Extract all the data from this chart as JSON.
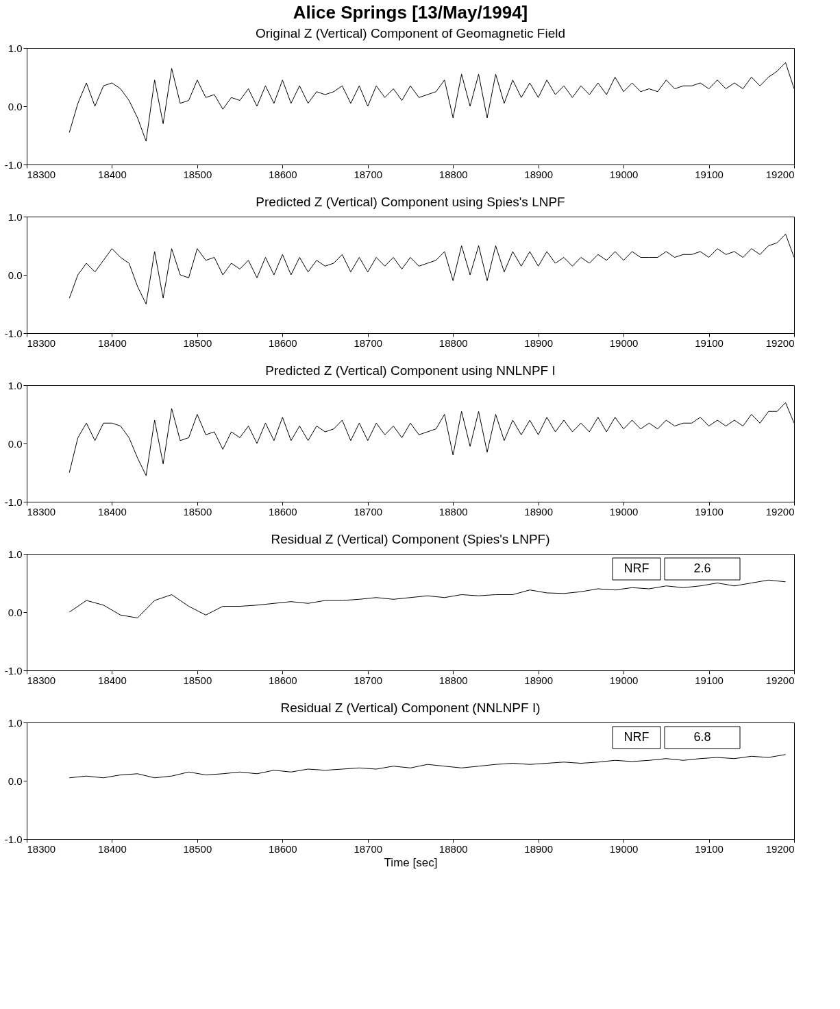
{
  "chart_data": [
    {
      "type": "line",
      "title": "Alice Springs [13/May/1994]",
      "subtitle": "Original Z (Vertical) Component of Geomagnetic Field",
      "x": [
        18350,
        18360,
        18370,
        18380,
        18390,
        18400,
        18410,
        18420,
        18430,
        18440,
        18450,
        18460,
        18470,
        18480,
        18490,
        18500,
        18510,
        18520,
        18530,
        18540,
        18550,
        18560,
        18570,
        18580,
        18590,
        18600,
        18610,
        18620,
        18630,
        18640,
        18650,
        18660,
        18670,
        18680,
        18690,
        18700,
        18710,
        18720,
        18730,
        18740,
        18750,
        18760,
        18770,
        18780,
        18790,
        18800,
        18810,
        18820,
        18830,
        18840,
        18850,
        18860,
        18870,
        18880,
        18890,
        18900,
        18910,
        18920,
        18930,
        18940,
        18950,
        18960,
        18970,
        18980,
        18990,
        19000,
        19010,
        19020,
        19030,
        19040,
        19050,
        19060,
        19070,
        19080,
        19090,
        19100,
        19110,
        19120,
        19130,
        19140,
        19150,
        19160,
        19170,
        19180,
        19190,
        19200
      ],
      "series": [
        {
          "color": "#000000",
          "values": [
            -0.45,
            0.05,
            0.4,
            0.0,
            0.35,
            0.4,
            0.3,
            0.1,
            -0.2,
            -0.6,
            0.45,
            -0.3,
            0.65,
            0.05,
            0.1,
            0.45,
            0.15,
            0.2,
            -0.05,
            0.15,
            0.1,
            0.3,
            0.0,
            0.35,
            0.05,
            0.45,
            0.05,
            0.35,
            0.05,
            0.25,
            0.2,
            0.25,
            0.35,
            0.05,
            0.35,
            0.0,
            0.35,
            0.15,
            0.3,
            0.1,
            0.35,
            0.15,
            0.2,
            0.25,
            0.45,
            -0.2,
            0.55,
            0.0,
            0.55,
            -0.2,
            0.55,
            0.05,
            0.45,
            0.15,
            0.4,
            0.15,
            0.45,
            0.2,
            0.35,
            0.15,
            0.35,
            0.2,
            0.4,
            0.2,
            0.5,
            0.25,
            0.4,
            0.25,
            0.3,
            0.25,
            0.45,
            0.3,
            0.35,
            0.35,
            0.4,
            0.3,
            0.45,
            0.3,
            0.4,
            0.3,
            0.5,
            0.35,
            0.5,
            0.6,
            0.75,
            0.3
          ]
        }
      ],
      "xlim": [
        18300,
        19200
      ],
      "xticks": [
        18300,
        18400,
        18500,
        18600,
        18700,
        18800,
        18900,
        19000,
        19100,
        19200
      ],
      "ylim": [
        -1,
        1
      ],
      "yticks": [
        {
          "value": -1,
          "label": "-1.0"
        },
        {
          "value": 0,
          "label": "0.0"
        },
        {
          "value": 1,
          "label": "1.0"
        }
      ]
    },
    {
      "type": "line",
      "title": "Predicted Z (Vertical) Component using Spies's LNPF",
      "x": [
        18350,
        18360,
        18370,
        18380,
        18390,
        18400,
        18410,
        18420,
        18430,
        18440,
        18450,
        18460,
        18470,
        18480,
        18490,
        18500,
        18510,
        18520,
        18530,
        18540,
        18550,
        18560,
        18570,
        18580,
        18590,
        18600,
        18610,
        18620,
        18630,
        18640,
        18650,
        18660,
        18670,
        18680,
        18690,
        18700,
        18710,
        18720,
        18730,
        18740,
        18750,
        18760,
        18770,
        18780,
        18790,
        18800,
        18810,
        18820,
        18830,
        18840,
        18850,
        18860,
        18870,
        18880,
        18890,
        18900,
        18910,
        18920,
        18930,
        18940,
        18950,
        18960,
        18970,
        18980,
        18990,
        19000,
        19010,
        19020,
        19030,
        19040,
        19050,
        19060,
        19070,
        19080,
        19090,
        19100,
        19110,
        19120,
        19130,
        19140,
        19150,
        19160,
        19170,
        19180,
        19190,
        19200
      ],
      "series": [
        {
          "color": "#000000",
          "values": [
            -0.4,
            0.0,
            0.2,
            0.05,
            0.25,
            0.45,
            0.3,
            0.2,
            -0.2,
            -0.5,
            0.4,
            -0.4,
            0.45,
            0.0,
            -0.05,
            0.45,
            0.25,
            0.3,
            0.0,
            0.2,
            0.1,
            0.25,
            -0.05,
            0.3,
            0.0,
            0.35,
            0.0,
            0.3,
            0.05,
            0.25,
            0.15,
            0.2,
            0.35,
            0.05,
            0.3,
            0.05,
            0.3,
            0.15,
            0.3,
            0.1,
            0.3,
            0.15,
            0.2,
            0.25,
            0.4,
            -0.1,
            0.5,
            0.0,
            0.5,
            -0.1,
            0.5,
            0.05,
            0.4,
            0.15,
            0.4,
            0.15,
            0.4,
            0.2,
            0.3,
            0.15,
            0.3,
            0.2,
            0.35,
            0.25,
            0.4,
            0.25,
            0.4,
            0.3,
            0.3,
            0.3,
            0.4,
            0.3,
            0.35,
            0.35,
            0.4,
            0.3,
            0.45,
            0.35,
            0.4,
            0.3,
            0.45,
            0.35,
            0.5,
            0.55,
            0.7,
            0.3
          ]
        }
      ],
      "xlim": [
        18300,
        19200
      ],
      "xticks": [
        18300,
        18400,
        18500,
        18600,
        18700,
        18800,
        18900,
        19000,
        19100,
        19200
      ],
      "ylim": [
        -1,
        1
      ],
      "yticks": [
        {
          "value": -1,
          "label": "-1.0"
        },
        {
          "value": 0,
          "label": "0.0"
        },
        {
          "value": 1,
          "label": "1.0"
        }
      ]
    },
    {
      "type": "line",
      "title": "Predicted Z (Vertical) Component using NNLNPF I",
      "x": [
        18350,
        18360,
        18370,
        18380,
        18390,
        18400,
        18410,
        18420,
        18430,
        18440,
        18450,
        18460,
        18470,
        18480,
        18490,
        18500,
        18510,
        18520,
        18530,
        18540,
        18550,
        18560,
        18570,
        18580,
        18590,
        18600,
        18610,
        18620,
        18630,
        18640,
        18650,
        18660,
        18670,
        18680,
        18690,
        18700,
        18710,
        18720,
        18730,
        18740,
        18750,
        18760,
        18770,
        18780,
        18790,
        18800,
        18810,
        18820,
        18830,
        18840,
        18850,
        18860,
        18870,
        18880,
        18890,
        18900,
        18910,
        18920,
        18930,
        18940,
        18950,
        18960,
        18970,
        18980,
        18990,
        19000,
        19010,
        19020,
        19030,
        19040,
        19050,
        19060,
        19070,
        19080,
        19090,
        19100,
        19110,
        19120,
        19130,
        19140,
        19150,
        19160,
        19170,
        19180,
        19190,
        19200
      ],
      "series": [
        {
          "color": "#000000",
          "values": [
            -0.5,
            0.1,
            0.35,
            0.05,
            0.35,
            0.35,
            0.3,
            0.1,
            -0.25,
            -0.55,
            0.4,
            -0.35,
            0.6,
            0.05,
            0.1,
            0.5,
            0.15,
            0.2,
            -0.1,
            0.2,
            0.1,
            0.3,
            0.0,
            0.35,
            0.05,
            0.45,
            0.05,
            0.3,
            0.05,
            0.3,
            0.2,
            0.25,
            0.4,
            0.05,
            0.35,
            0.05,
            0.35,
            0.15,
            0.3,
            0.1,
            0.35,
            0.15,
            0.2,
            0.25,
            0.5,
            -0.2,
            0.55,
            -0.05,
            0.55,
            -0.15,
            0.5,
            0.05,
            0.4,
            0.15,
            0.4,
            0.15,
            0.45,
            0.2,
            0.4,
            0.2,
            0.35,
            0.2,
            0.45,
            0.2,
            0.45,
            0.25,
            0.4,
            0.25,
            0.35,
            0.25,
            0.4,
            0.3,
            0.35,
            0.35,
            0.45,
            0.3,
            0.4,
            0.3,
            0.4,
            0.3,
            0.5,
            0.35,
            0.55,
            0.55,
            0.7,
            0.35
          ]
        }
      ],
      "xlim": [
        18300,
        19200
      ],
      "xticks": [
        18300,
        18400,
        18500,
        18600,
        18700,
        18800,
        18900,
        19000,
        19100,
        19200
      ],
      "ylim": [
        -1,
        1
      ],
      "yticks": [
        {
          "value": -1,
          "label": "-1.0"
        },
        {
          "value": 0,
          "label": "0.0"
        },
        {
          "value": 1,
          "label": "1.0"
        }
      ]
    },
    {
      "type": "line",
      "title": "Residual Z (Vertical) Component (Spies's LNPF)",
      "annotations": [
        "NRF",
        "2.6"
      ],
      "x": [
        18350,
        18370,
        18390,
        18410,
        18430,
        18450,
        18470,
        18490,
        18510,
        18530,
        18550,
        18570,
        18590,
        18610,
        18630,
        18650,
        18670,
        18690,
        18710,
        18730,
        18750,
        18770,
        18790,
        18810,
        18830,
        18850,
        18870,
        18890,
        18910,
        18930,
        18950,
        18970,
        18990,
        19010,
        19030,
        19050,
        19070,
        19090,
        19110,
        19130,
        19150,
        19170,
        19190
      ],
      "series": [
        {
          "color": "#000000",
          "values": [
            0.0,
            0.2,
            0.12,
            -0.05,
            -0.1,
            0.2,
            0.3,
            0.1,
            -0.05,
            0.1,
            0.1,
            0.12,
            0.15,
            0.18,
            0.15,
            0.2,
            0.2,
            0.22,
            0.25,
            0.22,
            0.25,
            0.28,
            0.25,
            0.3,
            0.28,
            0.3,
            0.3,
            0.38,
            0.33,
            0.32,
            0.35,
            0.4,
            0.38,
            0.42,
            0.4,
            0.45,
            0.42,
            0.45,
            0.5,
            0.45,
            0.5,
            0.55,
            0.52
          ]
        }
      ],
      "xlim": [
        18300,
        19200
      ],
      "xticks": [
        18300,
        18400,
        18500,
        18600,
        18700,
        18800,
        18900,
        19000,
        19100,
        19200
      ],
      "ylim": [
        -1,
        1
      ],
      "yticks": [
        {
          "value": -1,
          "label": "-1.0"
        },
        {
          "value": 0,
          "label": "0.0"
        },
        {
          "value": 1,
          "label": "1.0"
        }
      ]
    },
    {
      "type": "line",
      "title": "Residual Z (Vertical) Component (NNLNPF I)",
      "annotations": [
        "NRF",
        "6.8"
      ],
      "xlabel": "Time [sec]",
      "x": [
        18350,
        18370,
        18390,
        18410,
        18430,
        18450,
        18470,
        18490,
        18510,
        18530,
        18550,
        18570,
        18590,
        18610,
        18630,
        18650,
        18670,
        18690,
        18710,
        18730,
        18750,
        18770,
        18790,
        18810,
        18830,
        18850,
        18870,
        18890,
        18910,
        18930,
        18950,
        18970,
        18990,
        19010,
        19030,
        19050,
        19070,
        19090,
        19110,
        19130,
        19150,
        19170,
        19190
      ],
      "series": [
        {
          "color": "#000000",
          "values": [
            0.05,
            0.08,
            0.05,
            0.1,
            0.12,
            0.05,
            0.08,
            0.15,
            0.1,
            0.12,
            0.15,
            0.12,
            0.18,
            0.15,
            0.2,
            0.18,
            0.2,
            0.22,
            0.2,
            0.25,
            0.22,
            0.28,
            0.25,
            0.22,
            0.25,
            0.28,
            0.3,
            0.28,
            0.3,
            0.32,
            0.3,
            0.32,
            0.35,
            0.33,
            0.35,
            0.38,
            0.35,
            0.38,
            0.4,
            0.38,
            0.42,
            0.4,
            0.45
          ]
        }
      ],
      "xlim": [
        18300,
        19200
      ],
      "xticks": [
        18300,
        18400,
        18500,
        18600,
        18700,
        18800,
        18900,
        19000,
        19100,
        19200
      ],
      "ylim": [
        -1,
        1
      ],
      "yticks": [
        {
          "value": -1,
          "label": "-1.0"
        },
        {
          "value": 0,
          "label": "0.0"
        },
        {
          "value": 1,
          "label": "1.0"
        }
      ]
    }
  ]
}
